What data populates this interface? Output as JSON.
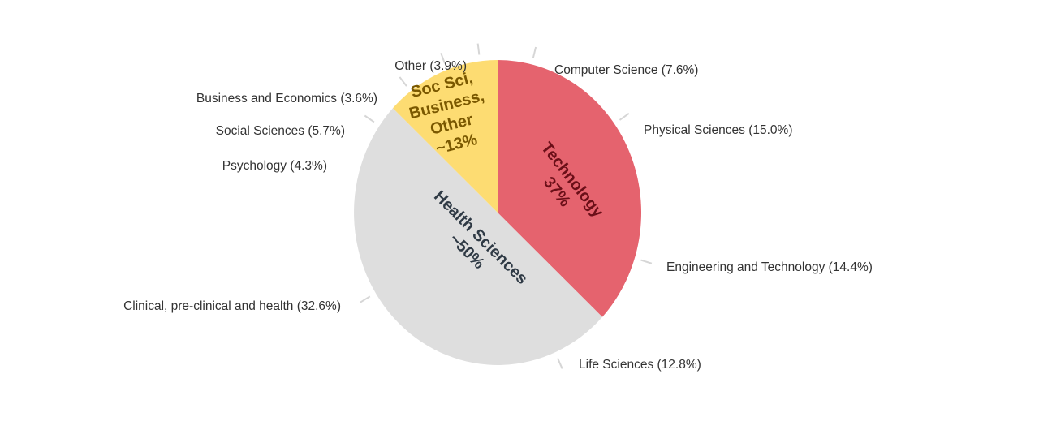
{
  "chart_data": {
    "type": "pie",
    "groups": [
      {
        "label": "Technology",
        "value_label": "37%",
        "value": 37,
        "color": "#e5636e",
        "text_color": "#6b0f18"
      },
      {
        "label": "Health Sciences",
        "value_label": "~50%",
        "value": 50,
        "color": "#dedede",
        "text_color": "#2f3a45"
      },
      {
        "label_lines": [
          "Soc Sci,",
          "Business,",
          "Other"
        ],
        "value_label": "~13%",
        "value": 13,
        "color": "#fddc72",
        "text_color": "#7a5800"
      }
    ],
    "slices": [
      {
        "label": "Computer Science (7.6%)",
        "name": "Computer Science",
        "value": 7.6,
        "group": "Technology"
      },
      {
        "label": "Physical Sciences (15.0%)",
        "name": "Physical Sciences",
        "value": 15.0,
        "group": "Technology"
      },
      {
        "label": "Engineering and Technology (14.4%)",
        "name": "Engineering and Technology",
        "value": 14.4,
        "group": "Technology"
      },
      {
        "label": "Life Sciences (12.8%)",
        "name": "Life Sciences",
        "value": 12.8,
        "group": "Health Sciences"
      },
      {
        "label": "Clinical, pre-clinical and health (32.6%)",
        "name": "Clinical, pre-clinical and health",
        "value": 32.6,
        "group": "Health Sciences"
      },
      {
        "label": "Psychology (4.3%)",
        "name": "Psychology",
        "value": 4.3,
        "group": "Health Sciences"
      },
      {
        "label": "Social Sciences (5.7%)",
        "name": "Social Sciences",
        "value": 5.7,
        "group": "Soc Sci"
      },
      {
        "label": "Business and Economics (3.6%)",
        "name": "Business and Economics",
        "value": 3.6,
        "group": "Soc Sci"
      },
      {
        "label": "Other (3.9%)",
        "name": "Other",
        "value": 3.9,
        "group": "Soc Sci"
      }
    ],
    "start_angle": "top, clockwise"
  }
}
